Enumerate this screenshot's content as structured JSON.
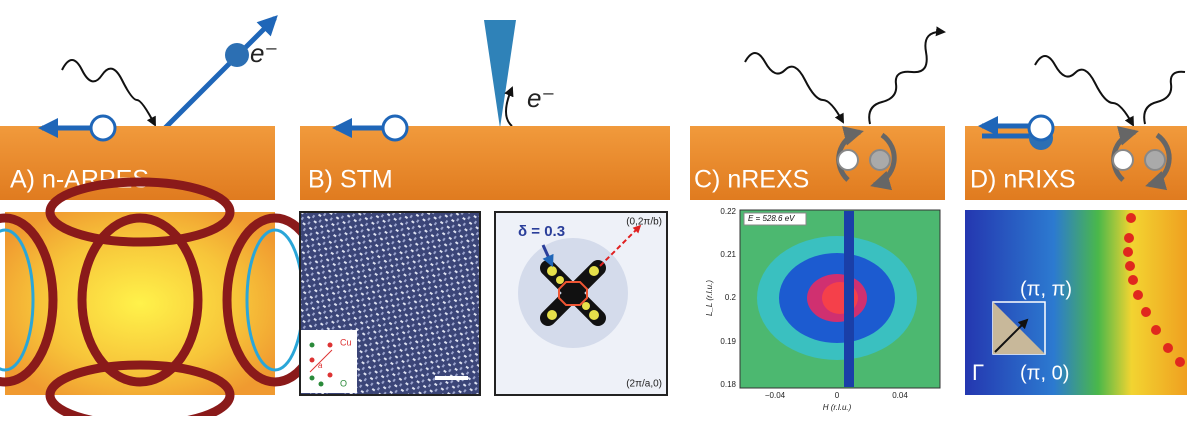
{
  "panels": [
    {
      "label": "A) n-ARPES",
      "electron": "e⁻"
    },
    {
      "label": "B) STM",
      "electron": "e⁻",
      "lattice_inset": {
        "cu": "Cu",
        "a": "a",
        "o": "O"
      },
      "fft": {
        "delta": "δ = 0.3",
        "top_right": "(0,2π/b)",
        "bottom_right": "(2π/a,0)"
      }
    },
    {
      "label": "C) nREXS",
      "plot": {
        "energy": "E = 528.6 eV",
        "y_label": "L_L (r.l.u.)",
        "y_ticks": [
          "0.22",
          "0.21",
          "0.2",
          "0.19",
          "0.18"
        ],
        "x_label": "H (r.l.u.)",
        "x_ticks": [
          "−0.04",
          "0",
          "0.04"
        ]
      }
    },
    {
      "label": "D) nRIXS",
      "bz": {
        "pi_pi": "(π, π)",
        "pi_0": "(π, 0)",
        "gamma": "Γ"
      }
    }
  ]
}
